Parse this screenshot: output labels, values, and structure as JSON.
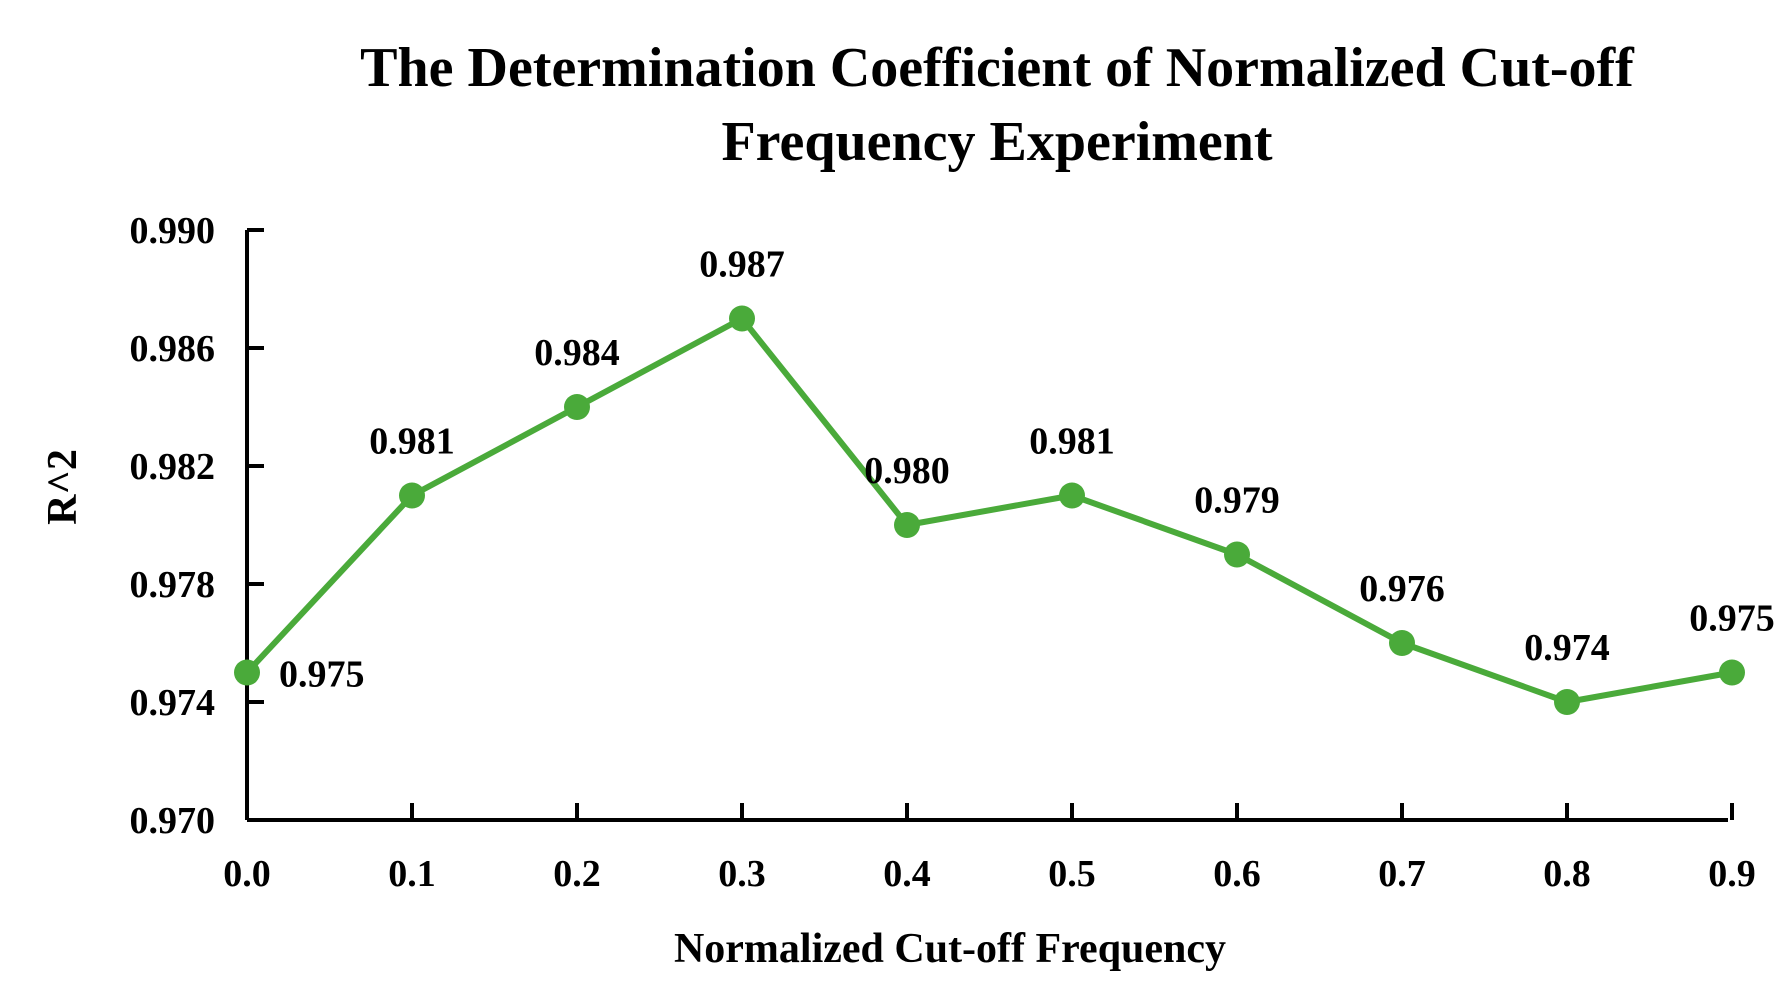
{
  "chart_data": {
    "type": "line",
    "title_lines": [
      "The Determination Coefficient of Normalized Cut-off",
      "Frequency Experiment"
    ],
    "xlabel": "Normalized Cut-off Frequency",
    "ylabel": "R^2",
    "x": [
      0.0,
      0.1,
      0.2,
      0.3,
      0.4,
      0.5,
      0.6,
      0.7,
      0.8,
      0.9
    ],
    "x_tick_labels": [
      "0.0",
      "0.1",
      "0.2",
      "0.3",
      "0.4",
      "0.5",
      "0.6",
      "0.7",
      "0.8",
      "0.9"
    ],
    "y_tick_values": [
      0.97,
      0.974,
      0.978,
      0.982,
      0.986,
      0.99
    ],
    "y_tick_labels": [
      "0.970",
      "0.974",
      "0.978",
      "0.982",
      "0.986",
      "0.990"
    ],
    "ylim": [
      0.97,
      0.99
    ],
    "grid": false,
    "series": [
      {
        "name": "R^2",
        "color": "#4aaa3a",
        "values": [
          0.975,
          0.981,
          0.984,
          0.987,
          0.98,
          0.981,
          0.979,
          0.976,
          0.974,
          0.975
        ],
        "data_labels": [
          "0.975",
          "0.981",
          "0.984",
          "0.987",
          "0.980",
          "0.981",
          "0.979",
          "0.976",
          "0.974",
          "0.975"
        ]
      }
    ]
  }
}
